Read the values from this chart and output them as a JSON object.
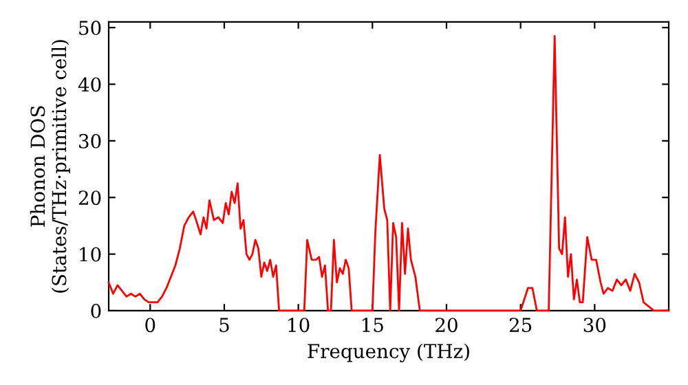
{
  "chart_data": {
    "type": "line",
    "xlabel": "Frequency (THz)",
    "ylabel": "Phonon DOS\n(States/THz·primitive cell)",
    "xlim": [
      -2.8,
      35
    ],
    "ylim": [
      0,
      51
    ],
    "xticks": [
      0,
      5,
      10,
      15,
      20,
      25,
      30
    ],
    "yticks": [
      0,
      10,
      20,
      30,
      40,
      50
    ],
    "grid": false,
    "line_style": "solid",
    "marker": "none",
    "series": [
      {
        "color": "#ff0000",
        "x": [
          -2.8,
          -2.5,
          -2.2,
          -1.9,
          -1.6,
          -1.3,
          -1.0,
          -0.7,
          -0.4,
          -0.1,
          0.2,
          0.5,
          0.8,
          1.1,
          1.4,
          1.7,
          2.0,
          2.3,
          2.6,
          2.9,
          3.1,
          3.4,
          3.6,
          3.8,
          4.0,
          4.3,
          4.6,
          4.9,
          5.1,
          5.3,
          5.5,
          5.7,
          5.9,
          6.1,
          6.3,
          6.5,
          6.7,
          6.9,
          7.1,
          7.3,
          7.5,
          7.7,
          7.9,
          8.1,
          8.3,
          8.5,
          8.7,
          8.9,
          9.5,
          10.4,
          10.6,
          10.9,
          11.2,
          11.4,
          11.6,
          11.8,
          12.0,
          12.2,
          12.4,
          12.6,
          12.8,
          13.0,
          13.2,
          13.4,
          13.6,
          14.3,
          15.0,
          15.2,
          15.5,
          15.8,
          16.0,
          16.2,
          16.4,
          16.6,
          16.8,
          17.0,
          17.2,
          17.4,
          17.6,
          17.9,
          18.2,
          20,
          25.0,
          25.5,
          25.8,
          26.1,
          26.4,
          26.9,
          27.3,
          27.6,
          27.8,
          28.0,
          28.2,
          28.4,
          28.6,
          28.8,
          29.0,
          29.2,
          29.5,
          29.8,
          30.1,
          30.4,
          30.6,
          30.9,
          31.2,
          31.5,
          31.8,
          32.1,
          32.4,
          32.7,
          33.0,
          33.3,
          34.0,
          35.0
        ],
        "values": [
          5,
          3,
          4.5,
          3.5,
          2.5,
          3,
          2.5,
          3,
          2,
          1.5,
          1.5,
          1.5,
          2.5,
          4,
          6,
          8,
          11,
          15,
          16.5,
          17.5,
          16,
          13.5,
          16.5,
          14.5,
          19.5,
          16,
          16.5,
          15.5,
          19,
          17,
          21,
          19,
          22.5,
          14.5,
          16,
          10,
          9,
          10,
          12.5,
          11,
          6,
          8.5,
          7,
          9,
          6,
          8,
          0,
          0,
          0,
          0,
          12.5,
          9,
          9,
          9.5,
          6,
          8,
          0,
          0,
          12.5,
          5,
          7.5,
          6.5,
          9,
          7.5,
          0,
          0,
          0,
          14,
          27.5,
          18,
          16,
          0,
          15.5,
          13,
          0,
          15.5,
          6.5,
          14.5,
          9,
          6,
          0,
          0,
          0,
          4,
          4,
          0,
          0,
          0,
          48.5,
          11,
          10,
          16.5,
          6,
          10,
          2,
          5.5,
          1.5,
          1.5,
          13,
          9,
          9,
          5,
          3,
          4,
          3.5,
          5.5,
          4.5,
          5.5,
          3.5,
          6.5,
          5,
          1.5,
          0,
          0
        ]
      }
    ]
  }
}
